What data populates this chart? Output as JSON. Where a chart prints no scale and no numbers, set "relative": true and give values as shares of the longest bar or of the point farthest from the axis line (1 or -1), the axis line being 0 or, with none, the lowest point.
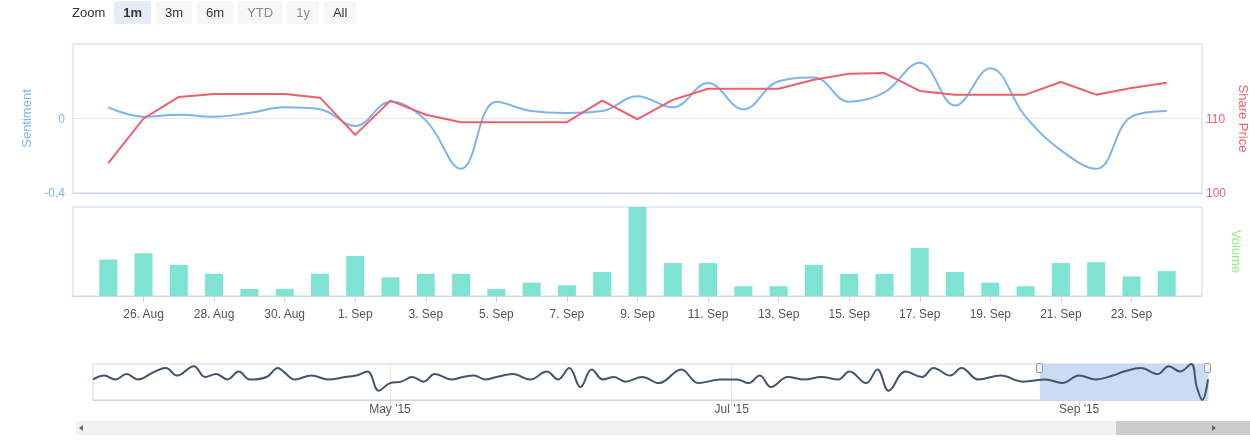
{
  "chart_data": [
    {
      "type": "line",
      "ylabel": "Sentiment",
      "y2label": "Share Price",
      "annotations": [
        "Zoom",
        "1m",
        "3m",
        "6m",
        "YTD",
        "1y",
        "All"
      ],
      "x": [
        "2015-08-25",
        "2015-08-26",
        "2015-08-27",
        "2015-08-28",
        "2015-08-29",
        "2015-08-30",
        "2015-08-31",
        "2015-09-01",
        "2015-09-02",
        "2015-09-03",
        "2015-09-04",
        "2015-09-05",
        "2015-09-06",
        "2015-09-07",
        "2015-09-08",
        "2015-09-09",
        "2015-09-10",
        "2015-09-11",
        "2015-09-12",
        "2015-09-13",
        "2015-09-14",
        "2015-09-15",
        "2015-09-16",
        "2015-09-17",
        "2015-09-18",
        "2015-09-19",
        "2015-09-20",
        "2015-09-21",
        "2015-09-22",
        "2015-09-23",
        "2015-09-24"
      ],
      "xlim": [
        "2015-08-24",
        "2015-09-25"
      ],
      "ylim": [
        -0.4,
        0.4
      ],
      "yticks": [
        -0.4,
        0
      ],
      "y2lim": [
        100,
        120
      ],
      "y2ticks": [
        100,
        110
      ],
      "grid": "y",
      "tick_labels": "y",
      "marker": "none",
      "series": [
        {
          "color": "#7cb5ec",
          "values": [
            0.06,
            0.01,
            0.02,
            0.01,
            0.03,
            0.06,
            0.05,
            -0.04,
            0.09,
            -0.01,
            -0.27,
            0.09,
            0.04,
            0.03,
            0.04,
            0.12,
            0.06,
            0.19,
            0.05,
            0.2,
            0.22,
            0.09,
            0.14,
            0.3,
            0.07,
            0.27,
            0.01,
            -0.17,
            -0.27,
            0.01,
            0.04
          ]
        },
        {
          "color": "#ec5f6b",
          "axis": "y2",
          "values": [
            104.0,
            110.0,
            112.9,
            113.3,
            113.3,
            113.3,
            112.8,
            107.8,
            112.4,
            110.5,
            109.5,
            109.5,
            109.5,
            109.5,
            112.4,
            109.9,
            112.5,
            114.0,
            114.0,
            114.0,
            115.2,
            116.0,
            116.1,
            113.7,
            113.2,
            113.2,
            113.2,
            114.9,
            113.2,
            114.1,
            114.8
          ]
        }
      ]
    },
    {
      "type": "bar",
      "relative": true,
      "ylabel": "Volume",
      "x": [
        "2015-08-25",
        "2015-08-26",
        "2015-08-27",
        "2015-08-28",
        "2015-08-29",
        "2015-08-30",
        "2015-08-31",
        "2015-09-01",
        "2015-09-02",
        "2015-09-03",
        "2015-09-04",
        "2015-09-05",
        "2015-09-06",
        "2015-09-07",
        "2015-09-08",
        "2015-09-09",
        "2015-09-10",
        "2015-09-11",
        "2015-09-12",
        "2015-09-13",
        "2015-09-14",
        "2015-09-15",
        "2015-09-16",
        "2015-09-17",
        "2015-09-18",
        "2015-09-19",
        "2015-09-20",
        "2015-09-21",
        "2015-09-22",
        "2015-09-23",
        "2015-09-24"
      ],
      "xlim": [
        "2015-08-24",
        "2015-09-25"
      ],
      "xticks": [
        {
          "value": "2015-08-26",
          "label": "26. Aug"
        },
        {
          "value": "2015-08-28",
          "label": "28. Aug"
        },
        {
          "value": "2015-08-30",
          "label": "30. Aug"
        },
        {
          "value": "2015-09-01",
          "label": "1. Sep"
        },
        {
          "value": "2015-09-03",
          "label": "3. Sep"
        },
        {
          "value": "2015-09-05",
          "label": "5. Sep"
        },
        {
          "value": "2015-09-07",
          "label": "7. Sep"
        },
        {
          "value": "2015-09-09",
          "label": "9. Sep"
        },
        {
          "value": "2015-09-11",
          "label": "11. Sep"
        },
        {
          "value": "2015-09-13",
          "label": "13. Sep"
        },
        {
          "value": "2015-09-15",
          "label": "15. Sep"
        },
        {
          "value": "2015-09-17",
          "label": "17. Sep"
        },
        {
          "value": "2015-09-19",
          "label": "19. Sep"
        },
        {
          "value": "2015-09-21",
          "label": "21. Sep"
        },
        {
          "value": "2015-09-23",
          "label": "23. Sep"
        }
      ],
      "series": [
        {
          "color": "#7fe3d3",
          "values": [
            0.41,
            0.48,
            0.35,
            0.25,
            0.08,
            0.08,
            0.25,
            0.45,
            0.21,
            0.25,
            0.25,
            0.08,
            0.15,
            0.12,
            0.27,
            1,
            0.37,
            0.37,
            0.11,
            0.11,
            0.35,
            0.25,
            0.25,
            0.54,
            0.27,
            0.15,
            0.11,
            0.37,
            0.38,
            0.22,
            0.28
          ]
        }
      ]
    },
    {
      "type": "line",
      "relative": true,
      "marker": "none",
      "grid": "x",
      "x": [
        "2015-03-09",
        "2015-03-11",
        "2015-03-13",
        "2015-03-15",
        "2015-03-17",
        "2015-03-20",
        "2015-03-22",
        "2015-03-24",
        "2015-03-27",
        "2015-03-29",
        "2015-03-31",
        "2015-04-02",
        "2015-04-04",
        "2015-04-06",
        "2015-04-09",
        "2015-04-11",
        "2015-04-12",
        "2015-04-14",
        "2015-04-17",
        "2015-04-20",
        "2015-04-23",
        "2015-04-25",
        "2015-04-27",
        "2015-04-29",
        "2015-05-01",
        "2015-05-03",
        "2015-05-05",
        "2015-05-07",
        "2015-05-09",
        "2015-05-12",
        "2015-05-14",
        "2015-05-16",
        "2015-05-18",
        "2015-05-20",
        "2015-05-23",
        "2015-05-26",
        "2015-05-29",
        "2015-05-31",
        "2015-06-02",
        "2015-06-04",
        "2015-06-06",
        "2015-06-08",
        "2015-06-10",
        "2015-06-12",
        "2015-06-15",
        "2015-06-18",
        "2015-06-22",
        "2015-06-25",
        "2015-06-29",
        "2015-07-02",
        "2015-07-04",
        "2015-07-06",
        "2015-07-08",
        "2015-07-11",
        "2015-07-14",
        "2015-07-17",
        "2015-07-20",
        "2015-07-22",
        "2015-07-25",
        "2015-07-27",
        "2015-07-29",
        "2015-08-01",
        "2015-08-04",
        "2015-08-06",
        "2015-08-09",
        "2015-08-11",
        "2015-08-14",
        "2015-08-18",
        "2015-08-22",
        "2015-08-26",
        "2015-08-29",
        "2015-09-01",
        "2015-09-04",
        "2015-09-07",
        "2015-09-09",
        "2015-09-12",
        "2015-09-15",
        "2015-09-17",
        "2015-09-19",
        "2015-09-21",
        "2015-09-22",
        "2015-09-23",
        "2015-09-24"
      ],
      "xlim": [
        "2015-03-09",
        "2015-09-24"
      ],
      "xticks": [
        {
          "value": "2015-05-01",
          "label": "May '15"
        },
        {
          "value": "2015-07-01",
          "label": "Jul '15"
        },
        {
          "value": "2015-09-01",
          "label": "Sep '15"
        }
      ],
      "bands": [
        {
          "axis": "x",
          "from": "2015-08-25",
          "to": "2015-09-24",
          "color": "#c9dcf4"
        }
      ],
      "series": [
        {
          "color": "#44546a",
          "values": [
            0.57,
            0.68,
            0.57,
            0.72,
            0.57,
            0.79,
            0.89,
            0.68,
            0.94,
            0.64,
            0.72,
            0.57,
            0.79,
            0.57,
            0.64,
            0.89,
            0.79,
            0.57,
            0.68,
            0.57,
            0.64,
            0.68,
            0.79,
            0.26,
            0.47,
            0.51,
            0.64,
            0.51,
            0.72,
            0.57,
            0.64,
            0.68,
            0.57,
            0.64,
            0.72,
            0.57,
            0.79,
            0.57,
            0.89,
            0.36,
            0.85,
            0.57,
            0.64,
            0.51,
            0.64,
            0.47,
            0.85,
            0.47,
            0.57,
            0.57,
            0.47,
            0.68,
            0.36,
            0.64,
            0.57,
            0.64,
            0.57,
            0.79,
            0.47,
            0.85,
            0.26,
            0.79,
            0.64,
            0.89,
            0.68,
            0.89,
            0.57,
            0.68,
            0.51,
            0.57,
            0.47,
            0.68,
            0.57,
            0.68,
            0.79,
            0.89,
            0.72,
            0.94,
            0.79,
            1,
            0.36,
            0,
            0.57
          ]
        }
      ]
    }
  ]
}
